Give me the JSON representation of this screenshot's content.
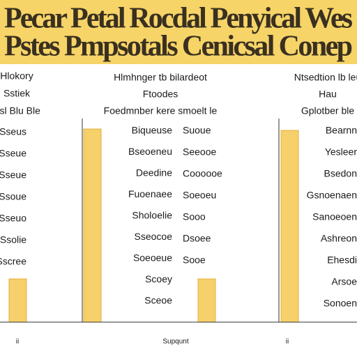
{
  "header": {
    "lines": [
      "Pecar Petal Rocdal Penyical Wes",
      "Pstes Pmpsotals Cenicsal Conep"
    ]
  },
  "left_column": {
    "headers": [
      "Hlokory",
      "Sstiek",
      "Ssl Blu Ble"
    ],
    "rows": [
      "Sseus",
      "Sseue",
      "Sseue",
      "Ssoue",
      "Sseuo",
      "Ssolie",
      "Sscree"
    ],
    "footer": "ii"
  },
  "middle_column": {
    "headers": [
      "Hlmhnger tb bilardeot",
      "Ftoodes",
      "Foedmnber kere smoelt le"
    ],
    "rows_left": [
      "Biqueuse",
      "Bseoeneu",
      "Deedine",
      "Fuoenaee",
      "Sholoelie",
      "Sseocoe",
      "Soeoeue",
      "Scoey",
      "Sceoe"
    ],
    "rows_right": [
      "Suoue",
      "Seeooe",
      "Coooooe",
      "Soeoeu",
      "Sooo",
      "Dsoee",
      "Sooe"
    ],
    "footer": "Supqunt"
  },
  "right_column": {
    "headers": [
      "Ntsedtion lb leu",
      "Hau",
      "Gplotber ble"
    ],
    "rows": [
      "Bearnn",
      "Yesleer",
      "Bsedon",
      "Gsnoenaen",
      "Sanoeoen",
      "Ashreon",
      "Ehesdi",
      "Arsoe",
      "Sonoen"
    ],
    "footer": "ii"
  }
}
